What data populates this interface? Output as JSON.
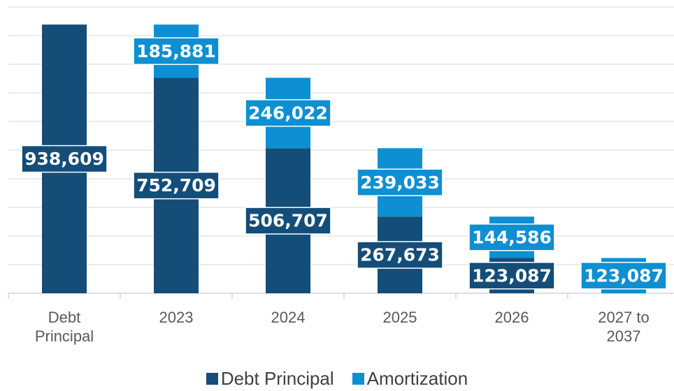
{
  "chart_data": {
    "type": "stacked_bar",
    "categories": [
      "Debt Principal",
      "2023",
      "2024",
      "2025",
      "2026",
      "2027 to 2037"
    ],
    "series": [
      {
        "name": "Debt Principal",
        "color": "#144d78",
        "values": [
          938609,
          752709,
          506707,
          267673,
          123087,
          null
        ],
        "value_labels": [
          "938,609",
          "752,709",
          "506,707",
          "267,673",
          "123,087",
          null
        ]
      },
      {
        "name": "Amortization",
        "color": "#0e8fd2",
        "values": [
          null,
          185881,
          246022,
          239033,
          144586,
          123087
        ],
        "value_labels": [
          null,
          "185,881",
          "246,022",
          "239,033",
          "144,586",
          "123,087"
        ]
      }
    ],
    "ylim": [
      0,
      1000000
    ],
    "yticks": [
      0,
      100000,
      200000,
      300000,
      400000,
      500000,
      600000,
      700000,
      800000,
      900000,
      1000000
    ],
    "grid": true,
    "legend": "bottom"
  }
}
